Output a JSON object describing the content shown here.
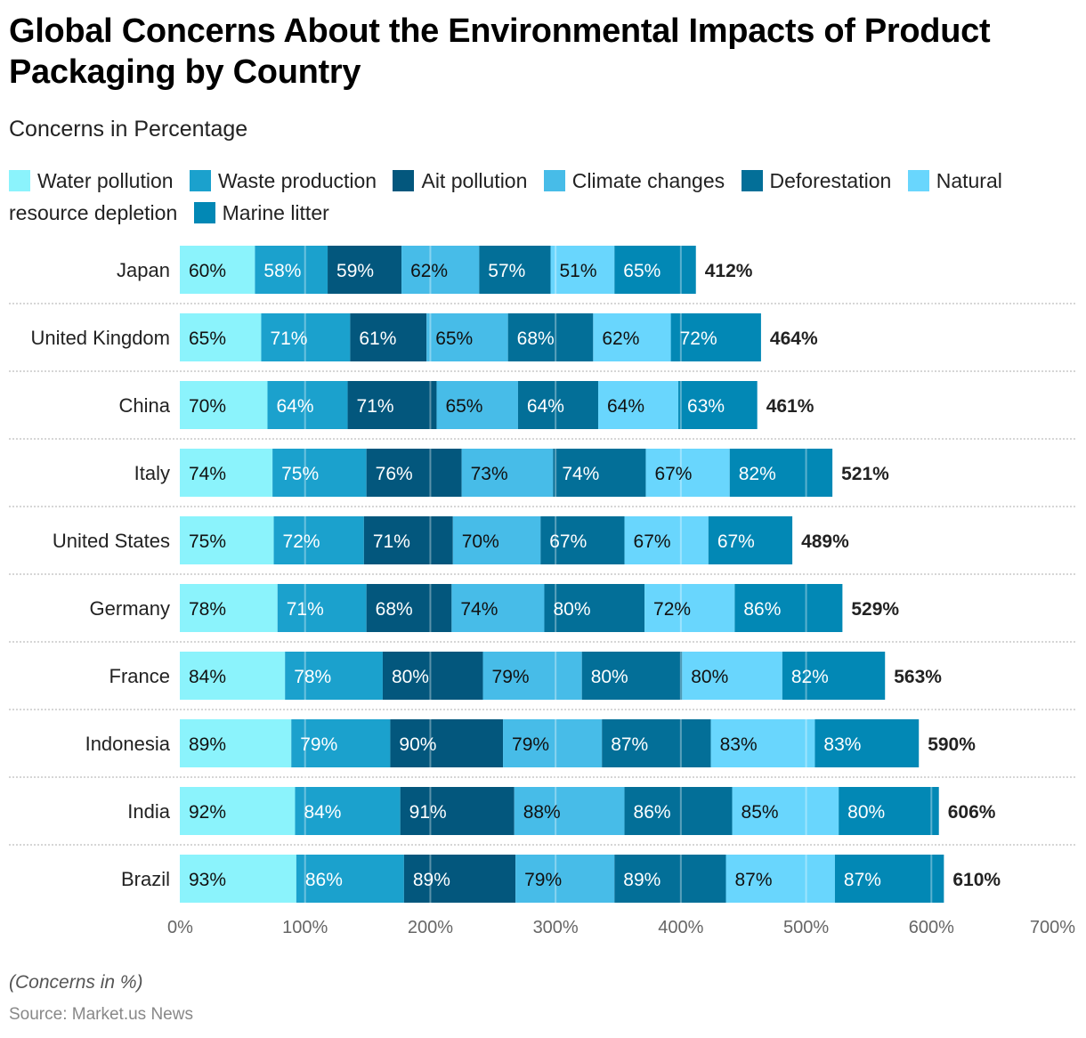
{
  "chart_data": {
    "type": "bar",
    "orientation": "horizontal",
    "stacked": true,
    "title": "Global Concerns About the Environmental Impacts of Product Packaging by Country",
    "subtitle": "Concerns in Percentage",
    "xlabel": "",
    "ylabel": "",
    "xlim": [
      0,
      700
    ],
    "x_ticks": [
      "0%",
      "100%",
      "200%",
      "300%",
      "400%",
      "500%",
      "600%",
      "700%"
    ],
    "grid": true,
    "legend_position": "top",
    "categories": [
      "Japan",
      "United Kingdom",
      "China",
      "Italy",
      "United States",
      "Germany",
      "France",
      "Indonesia",
      "India",
      "Brazil"
    ],
    "series": [
      {
        "name": "Water pollution",
        "color": "#8bf3fc",
        "label_color": "#111111",
        "values": [
          60,
          65,
          70,
          74,
          75,
          78,
          84,
          89,
          92,
          93
        ]
      },
      {
        "name": "Waste production",
        "color": "#1ba1cd",
        "label_color": "#ffffff",
        "values": [
          58,
          71,
          64,
          75,
          72,
          71,
          78,
          79,
          84,
          86
        ]
      },
      {
        "name": "Ait pollution",
        "color": "#03577d",
        "label_color": "#ffffff",
        "values": [
          59,
          61,
          71,
          76,
          71,
          68,
          80,
          90,
          91,
          89
        ]
      },
      {
        "name": "Climate changes",
        "color": "#47bce8",
        "label_color": "#111111",
        "values": [
          62,
          65,
          65,
          73,
          70,
          74,
          79,
          79,
          88,
          79
        ]
      },
      {
        "name": "Deforestation",
        "color": "#036f98",
        "label_color": "#ffffff",
        "values": [
          57,
          68,
          64,
          74,
          67,
          80,
          80,
          87,
          86,
          89
        ]
      },
      {
        "name": "Natural resource depletion",
        "color": "#69d6fd",
        "label_color": "#111111",
        "values": [
          51,
          62,
          64,
          67,
          67,
          72,
          80,
          83,
          85,
          87
        ]
      },
      {
        "name": "Marine litter",
        "color": "#0288b5",
        "label_color": "#ffffff",
        "values": [
          65,
          72,
          63,
          82,
          67,
          86,
          82,
          83,
          80,
          87
        ]
      }
    ],
    "totals": [
      412,
      464,
      461,
      521,
      489,
      529,
      563,
      590,
      606,
      610
    ],
    "total_labels": [
      "412%",
      "464%",
      "461%",
      "521%",
      "489%",
      "529%",
      "563%",
      "590%",
      "606%",
      "610%"
    ]
  },
  "footnote": "(Concerns in %)",
  "source": "Source: Market.us News"
}
